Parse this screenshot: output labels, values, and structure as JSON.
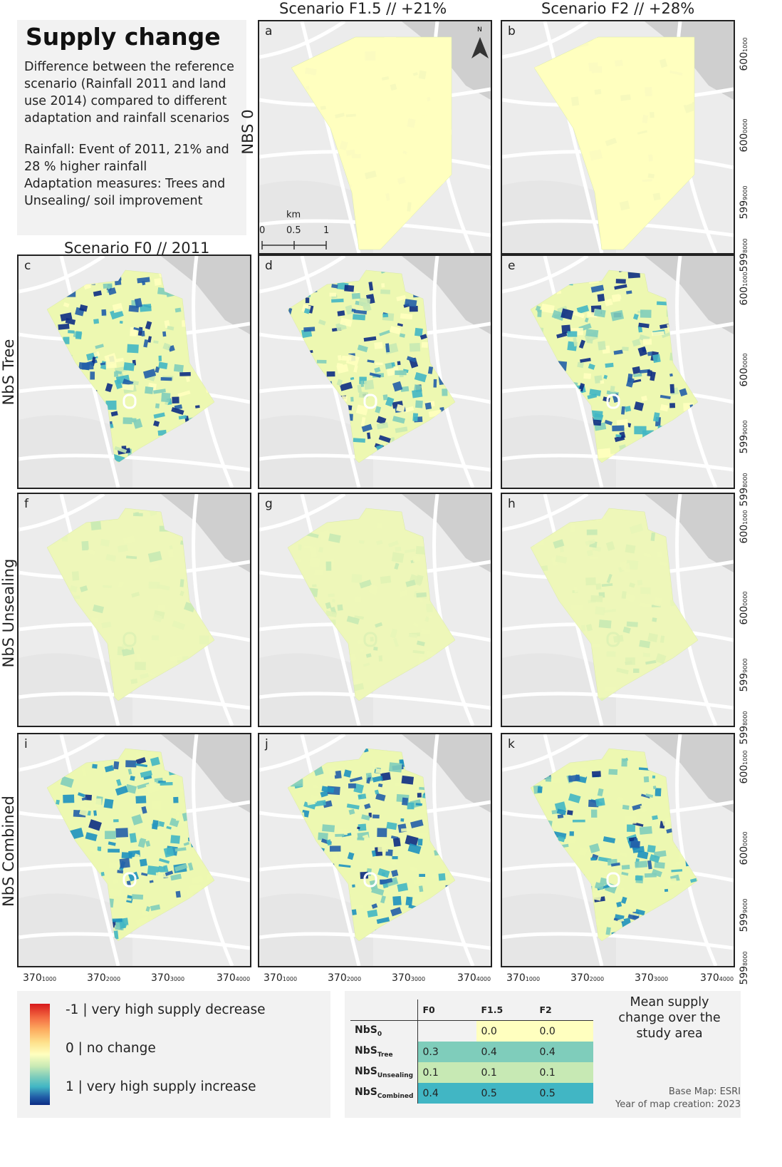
{
  "info": {
    "title": "Supply change",
    "text1": "Difference between the reference scenario (Rainfall 2011 and land use 2014) compared to different adaptation and rainfall scenarios",
    "text2": "Rainfall: Event of 2011, 21% and 28 % higher rainfall",
    "text3": "Adaptation measures: Trees and Unsealing/ soil improvement"
  },
  "columns": [
    "Scenario F0 // 2011",
    "Scenario F1.5 // +21%",
    "Scenario F2 // +28%"
  ],
  "rows": [
    "NBS 0",
    "NbS Tree",
    "NbS Unsealing",
    "NbS Combined"
  ],
  "panels": [
    {
      "letter": "a",
      "mean": "0.0"
    },
    {
      "letter": "b",
      "mean": "0.0"
    },
    {
      "letter": "c",
      "mean": "0.3"
    },
    {
      "letter": "d",
      "mean": "0.4"
    },
    {
      "letter": "e",
      "mean": "0.4"
    },
    {
      "letter": "f",
      "mean": "0.1"
    },
    {
      "letter": "g",
      "mean": "0.1"
    },
    {
      "letter": "h",
      "mean": "0.1"
    },
    {
      "letter": "i",
      "mean": "0.4"
    },
    {
      "letter": "j",
      "mean": "0.5"
    },
    {
      "letter": "k",
      "mean": "0.5"
    }
  ],
  "north_label": "N",
  "scalebar": {
    "unit": "km",
    "ticks": [
      "0",
      "0.5",
      "1"
    ]
  },
  "y_ticks": [
    {
      "main": "600",
      "sub": "1000"
    },
    {
      "main": "600",
      "sub": "0000"
    },
    {
      "main": "599",
      "sub": "9000"
    },
    {
      "main": "599",
      "sub": "8000"
    }
  ],
  "x_ticks": [
    {
      "main": "370",
      "sub": "1000"
    },
    {
      "main": "370",
      "sub": "2000"
    },
    {
      "main": "370",
      "sub": "3000"
    },
    {
      "main": "370",
      "sub": "4000"
    }
  ],
  "legend": {
    "top": "-1 | very high supply decrease",
    "mid": "0 | no change",
    "bottom": "1 | very high supply increase",
    "colors": [
      "#d7191c",
      "#fdae61",
      "#ffffbf",
      "#41b6c4",
      "#0c2c84"
    ]
  },
  "table": {
    "caption": "Mean supply change over the study area",
    "headers": [
      "F0",
      "F1.5",
      "F2"
    ],
    "rows": [
      {
        "base": "NbS",
        "sub": "0",
        "values": [
          "",
          "0.0",
          "0.0"
        ],
        "colors": [
          "#f2f2f2",
          "#ffffbf",
          "#ffffbf"
        ]
      },
      {
        "base": "NbS",
        "sub": "Tree",
        "values": [
          "0.3",
          "0.4",
          "0.4"
        ],
        "colors": [
          "#7fcdbb",
          "#7fcdbb",
          "#7fcdbb"
        ]
      },
      {
        "base": "NbS",
        "sub": "Unsealing",
        "values": [
          "0.1",
          "0.1",
          "0.1"
        ],
        "colors": [
          "#c7e9b4",
          "#c7e9b4",
          "#c7e9b4"
        ]
      },
      {
        "base": "NbS",
        "sub": "Combined",
        "values": [
          "0.4",
          "0.5",
          "0.5"
        ],
        "colors": [
          "#41b6c4",
          "#41b6c4",
          "#41b6c4"
        ]
      }
    ]
  },
  "credits": {
    "basemap": "Base Map: ESRI",
    "year": "Year of map creation: 2023"
  }
}
